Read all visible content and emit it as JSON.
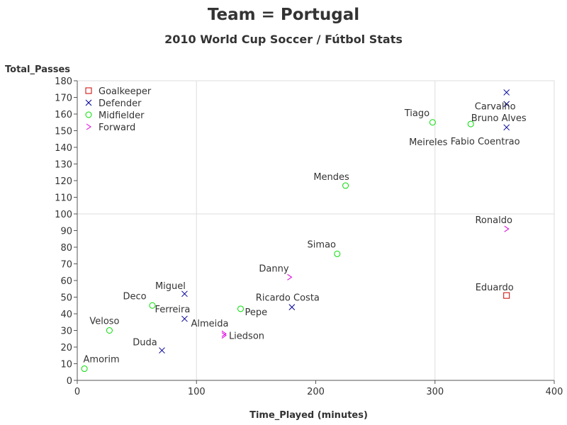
{
  "chart_data": {
    "type": "scatter",
    "title": "Team = Portugal",
    "subtitle": "2010 World Cup Soccer / Fútbol Stats",
    "xlabel": "Time_Played (minutes)",
    "ylabel": "Total_Passes",
    "xlim": [
      0,
      400
    ],
    "ylim": [
      0,
      180
    ],
    "xticks": [
      0,
      100,
      200,
      300,
      400
    ],
    "yticks": [
      0,
      10,
      20,
      30,
      40,
      50,
      60,
      70,
      80,
      90,
      100,
      110,
      120,
      130,
      140,
      150,
      160,
      170,
      180
    ],
    "grid": true,
    "reference_lines": {
      "x": [
        100,
        300
      ],
      "y": [
        100
      ]
    },
    "legend_position": "top-left",
    "series": [
      {
        "name": "Goalkeeper",
        "marker": "square",
        "color": "#cc0000",
        "points": [
          {
            "label": "Eduardo",
            "x": 360,
            "y": 51
          }
        ]
      },
      {
        "name": "Defender",
        "marker": "x",
        "color": "#000099",
        "points": [
          {
            "label": "Carvalho",
            "x": 360,
            "y": 173
          },
          {
            "label": "Bruno Alves",
            "x": 360,
            "y": 166
          },
          {
            "label": "Fabio Coentrao",
            "x": 360,
            "y": 152
          },
          {
            "label": "Ricardo Costa",
            "x": 180,
            "y": 44
          },
          {
            "label": "Miguel",
            "x": 90,
            "y": 52
          },
          {
            "label": "Ferreira",
            "x": 90,
            "y": 37
          },
          {
            "label": "Duda",
            "x": 71,
            "y": 18
          }
        ]
      },
      {
        "name": "Midfielder",
        "marker": "circle",
        "color": "#00dd00",
        "points": [
          {
            "label": "Tiago",
            "x": 298,
            "y": 155
          },
          {
            "label": "Meireles",
            "x": 330,
            "y": 154
          },
          {
            "label": "Mendes",
            "x": 225,
            "y": 117
          },
          {
            "label": "Simao",
            "x": 218,
            "y": 76
          },
          {
            "label": "Deco",
            "x": 63,
            "y": 45
          },
          {
            "label": "Pepe",
            "x": 137,
            "y": 43
          },
          {
            "label": "Veloso",
            "x": 27,
            "y": 30
          },
          {
            "label": "Amorim",
            "x": 6,
            "y": 7
          }
        ]
      },
      {
        "name": "Forward",
        "marker": "chevron",
        "color": "#dd00dd",
        "points": [
          {
            "label": "Ronaldo",
            "x": 360,
            "y": 91
          },
          {
            "label": "Danny",
            "x": 178,
            "y": 62
          },
          {
            "label": "Almeida",
            "x": 123,
            "y": 28
          },
          {
            "label": "Liedson",
            "x": 123,
            "y": 27
          }
        ]
      }
    ]
  }
}
